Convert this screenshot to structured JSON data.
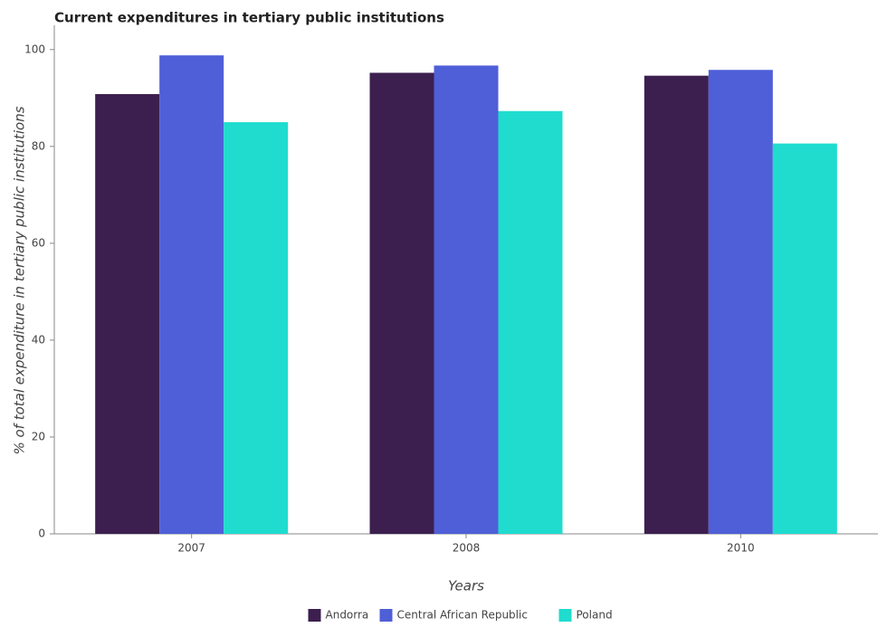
{
  "chart_data": {
    "type": "bar",
    "title": "Current expenditures in tertiary public institutions",
    "xlabel": "Years",
    "ylabel": "% of total expenditure in tertiary public institutions",
    "categories": [
      "2007",
      "2008",
      "2010"
    ],
    "series": [
      {
        "name": "Andorra",
        "color": "#3c1f4f",
        "values": [
          90.8,
          95.2,
          94.6
        ]
      },
      {
        "name": "Central African Republic",
        "color": "#4f5fd8",
        "values": [
          98.8,
          96.7,
          95.8
        ]
      },
      {
        "name": "Poland",
        "color": "#1fdccf",
        "values": [
          85.0,
          87.3,
          80.6
        ]
      }
    ],
    "ylim": [
      0,
      105
    ],
    "yticks": [
      0,
      20,
      40,
      60,
      80,
      100
    ],
    "grid": false,
    "legend": "bottom"
  }
}
